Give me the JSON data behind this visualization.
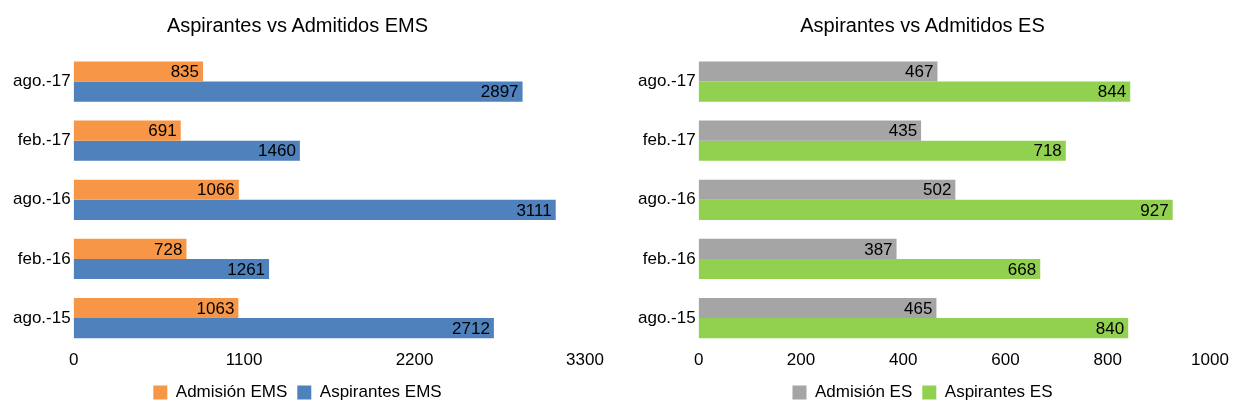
{
  "chart_data": [
    {
      "type": "bar",
      "orientation": "horizontal",
      "title": "Aspirantes vs Admitidos EMS",
      "categories": [
        "ago.-17",
        "feb.-17",
        "ago.-16",
        "feb.-16",
        "ago.-15"
      ],
      "series": [
        {
          "name": "Admisión EMS",
          "color": "#f79646",
          "values": [
            835,
            691,
            1066,
            728,
            1063
          ]
        },
        {
          "name": "Aspirantes EMS",
          "color": "#4f81bd",
          "values": [
            2897,
            1460,
            3111,
            1261,
            2712
          ]
        }
      ],
      "xlim": [
        0,
        3300
      ],
      "xticks": [
        0,
        1100,
        2200,
        3300
      ],
      "grid": false,
      "legend": "bottom",
      "data_labels": true
    },
    {
      "type": "bar",
      "orientation": "horizontal",
      "title": "Aspirantes vs Admitidos ES",
      "categories": [
        "ago.-17",
        "feb.-17",
        "ago.-16",
        "feb.-16",
        "ago.-15"
      ],
      "series": [
        {
          "name": "Admisión ES",
          "color": "#a5a5a5",
          "values": [
            467,
            435,
            502,
            387,
            465
          ]
        },
        {
          "name": "Aspirantes ES",
          "color": "#92d050",
          "values": [
            844,
            718,
            927,
            668,
            840
          ]
        }
      ],
      "xlim": [
        0,
        1000
      ],
      "xticks": [
        0,
        200,
        400,
        600,
        800,
        1000
      ],
      "grid": false,
      "legend": "bottom",
      "data_labels": true
    }
  ]
}
